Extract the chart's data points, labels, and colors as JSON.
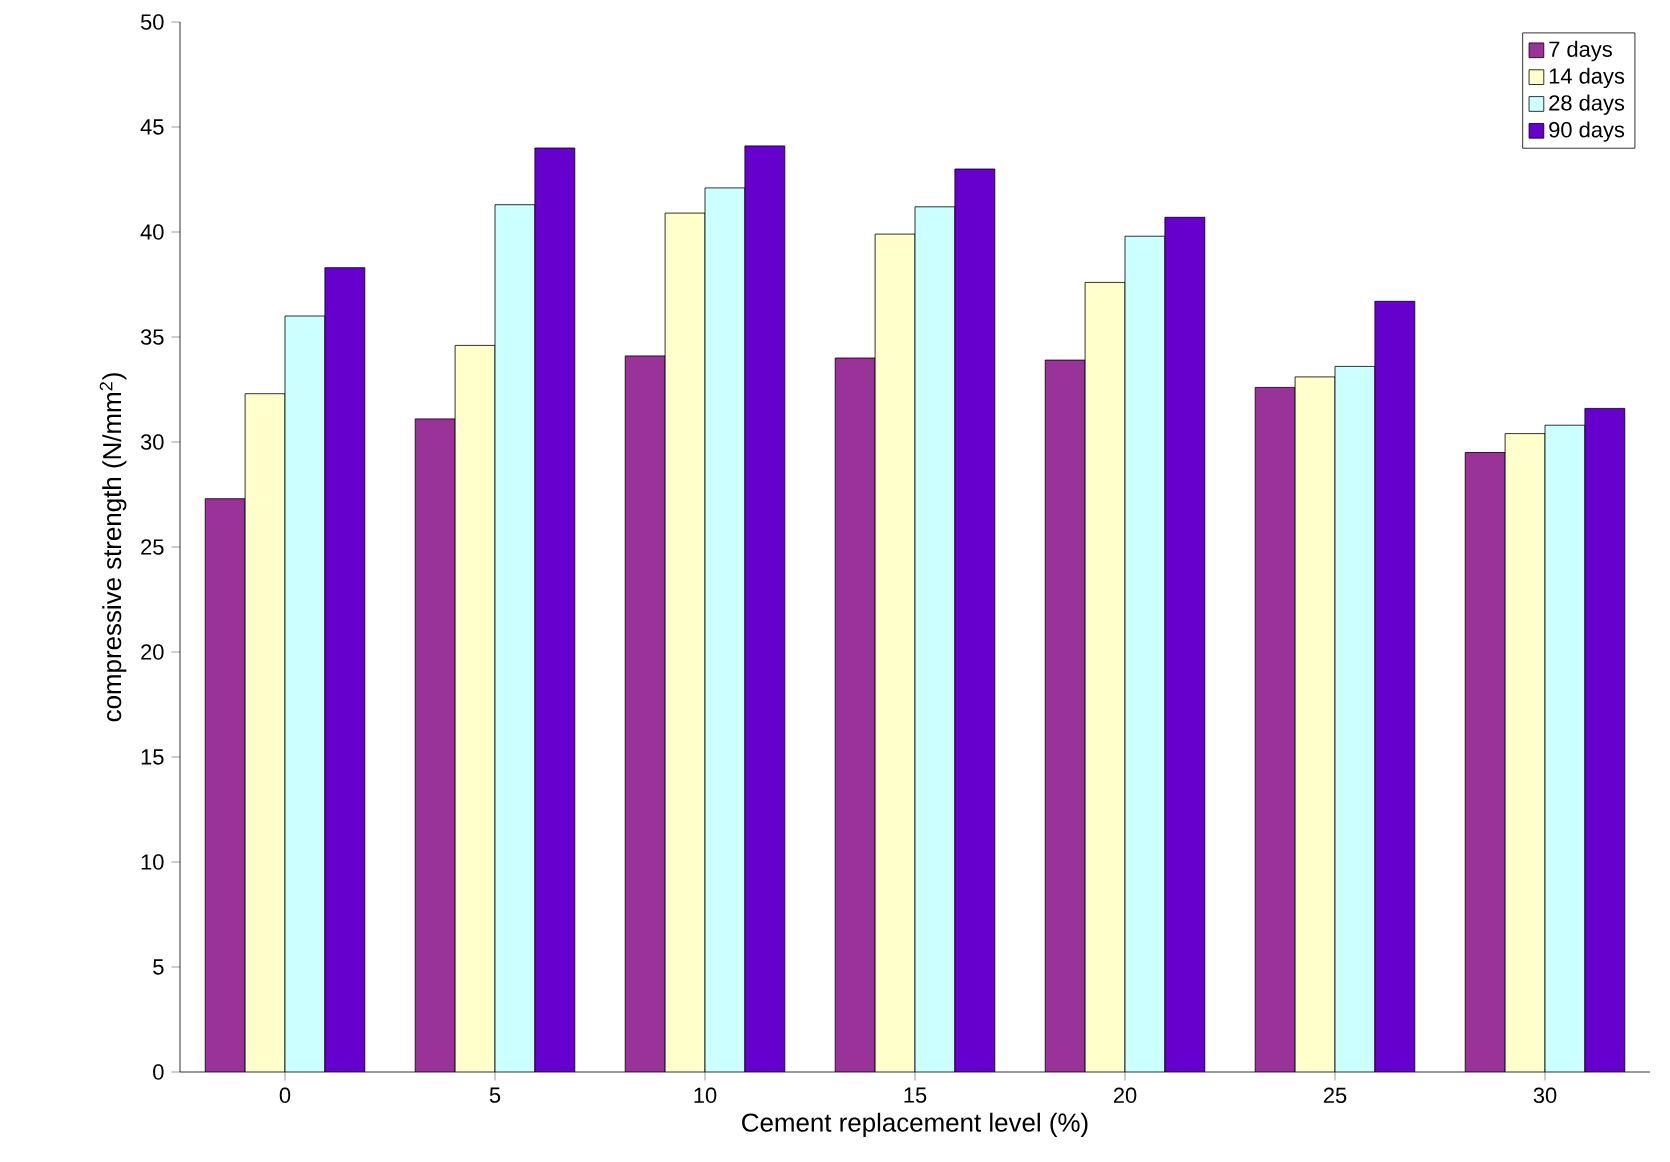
{
  "chart_data": {
    "type": "bar",
    "xlabel": "Cement replacement level (%)",
    "ylabel": "compressive strength (N/mm$^{2}$)",
    "categories": [
      "0",
      "5",
      "10",
      "15",
      "20",
      "25",
      "30"
    ],
    "series": [
      {
        "name": "7 days",
        "color": "#993399",
        "values": [
          27.3,
          31.1,
          34.1,
          34.0,
          33.9,
          32.6,
          29.5
        ]
      },
      {
        "name": "14 days",
        "color": "#ffffcc",
        "values": [
          32.3,
          34.6,
          40.9,
          39.9,
          37.6,
          33.1,
          30.4
        ]
      },
      {
        "name": "28 days",
        "color": "#ccffff",
        "values": [
          36.0,
          41.3,
          42.1,
          41.2,
          39.8,
          33.6,
          30.8
        ]
      },
      {
        "name": "90 days",
        "color": "#6600cc",
        "values": [
          38.3,
          44.0,
          44.1,
          43.0,
          40.7,
          36.7,
          31.6
        ]
      }
    ],
    "ylim": [
      0,
      50
    ],
    "yticks": [
      0,
      5,
      10,
      15,
      20,
      25,
      30,
      35,
      40,
      45,
      50
    ],
    "legend": "top right",
    "grid": false
  }
}
